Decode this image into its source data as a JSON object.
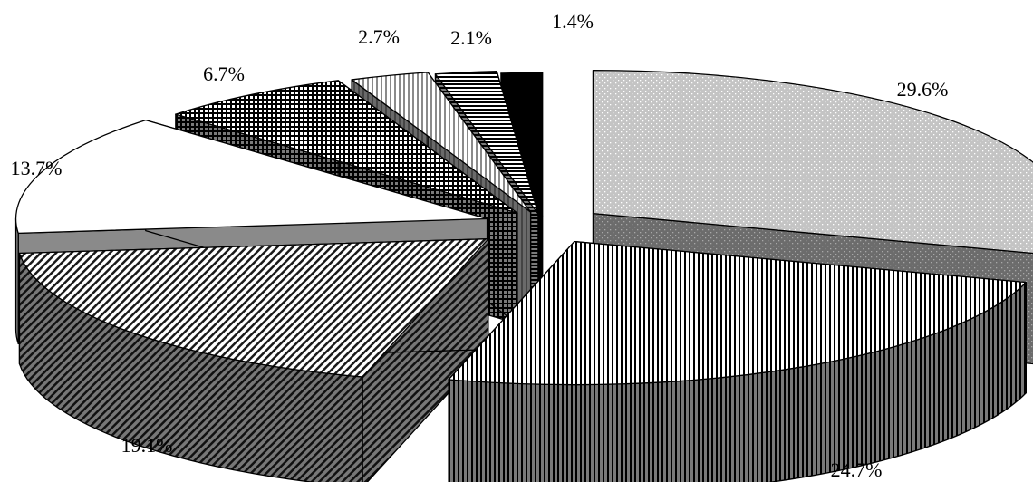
{
  "chart_data": {
    "type": "pie",
    "style": "3d-exploded",
    "title": "",
    "slices": [
      {
        "label": "29.6%",
        "value": 29.6,
        "pattern": "dots"
      },
      {
        "label": "24.7%",
        "value": 24.7,
        "pattern": "vertical-lines"
      },
      {
        "label": "19.1%",
        "value": 19.1,
        "pattern": "diagonal-lines"
      },
      {
        "label": "13.7%",
        "value": 13.7,
        "pattern": "solid-white"
      },
      {
        "label": "6.7%",
        "value": 6.7,
        "pattern": "checkered-grid"
      },
      {
        "label": "2.7%",
        "value": 2.7,
        "pattern": "light-vertical-lines"
      },
      {
        "label": "2.1%",
        "value": 2.1,
        "pattern": "horizontal-lines"
      },
      {
        "label": "1.4%",
        "value": 1.4,
        "pattern": "solid-black"
      }
    ],
    "legend": "none",
    "grid": false
  }
}
